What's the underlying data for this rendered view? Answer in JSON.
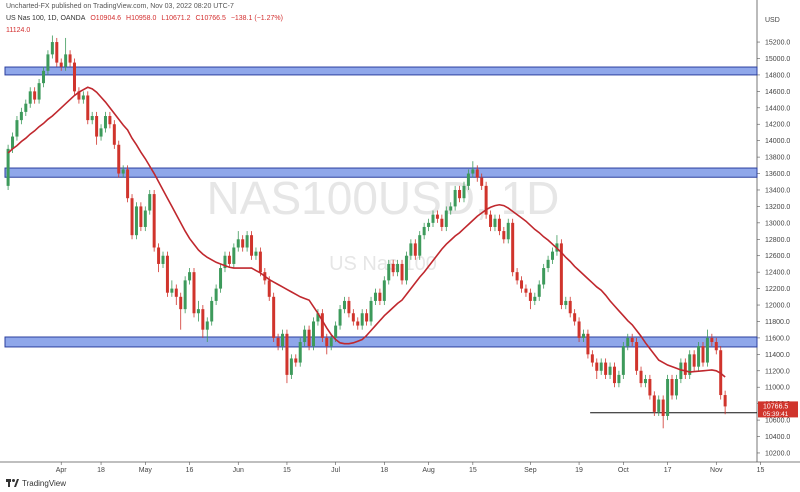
{
  "header": {
    "published": "Uncharted-FX published on TradingView.com, Nov 03, 2022 08:20 UTC-7",
    "symbol": "US Nas 100, 1D, OANDA",
    "ohlc": [
      "O10904.6",
      "H10958.0",
      "L10671.2",
      "C10766.5"
    ],
    "change": "−138.1 (−1.27%)"
  },
  "footer": {
    "brand": "TradingView"
  },
  "chart_data": {
    "type": "candlestick",
    "watermark": {
      "symbol": "NAS100USD, 1D",
      "name": "US Nas 100"
    },
    "currency": "USD",
    "up_color": "#3d9a5b",
    "down_color": "#d0342c",
    "open": [
      13450,
      13900,
      14050,
      14250,
      14350,
      14450,
      14600,
      14500,
      14700,
      14850,
      15050,
      15200,
      14950,
      14900,
      15050,
      14950,
      14600,
      14500,
      14550,
      14250,
      14300,
      14050,
      14150,
      14300,
      14200,
      13950,
      13600,
      13650,
      13300,
      12850,
      13200,
      12950,
      13150,
      13350,
      12700,
      12500,
      12600,
      12150,
      12200,
      12100,
      11950,
      12300,
      12400,
      11900,
      11950,
      11700,
      11800,
      12050,
      12200,
      12450,
      12600,
      12500,
      12700,
      12800,
      12700,
      12850,
      12600,
      12650,
      12400,
      12300,
      12100,
      11600,
      11500,
      11650,
      11150,
      11350,
      11300,
      11550,
      11700,
      11500,
      11800,
      11900,
      11600,
      11500,
      11600,
      11750,
      11950,
      12050,
      11900,
      11800,
      11750,
      11900,
      11800,
      12050,
      12150,
      12050,
      12300,
      12500,
      12400,
      12500,
      12300,
      12600,
      12750,
      12600,
      12850,
      12950,
      13000,
      13100,
      13050,
      12950,
      13150,
      13200,
      13400,
      13300,
      13450,
      13600,
      13650,
      13550,
      13450,
      13100,
      12950,
      13050,
      12900,
      12800,
      13000,
      12400,
      12300,
      12200,
      12150,
      12050,
      12100,
      12250,
      12450,
      12550,
      12650,
      12750,
      12000,
      12050,
      11900,
      11800,
      11600,
      11650,
      11400,
      11300,
      11200,
      11300,
      11150,
      11250,
      11050,
      11150,
      11500,
      11600,
      11550,
      11200,
      11050,
      11100,
      10900,
      10700,
      10850,
      10650,
      11100,
      10900,
      11100,
      11300,
      11150,
      11400,
      11250,
      11500,
      11300,
      11600,
      11550,
      11450,
      10904.6
    ],
    "high": [
      13950,
      14100,
      14300,
      14400,
      14500,
      14650,
      14650,
      14750,
      14900,
      15100,
      15280,
      15250,
      15000,
      15250,
      15100,
      15000,
      14650,
      14600,
      14600,
      14350,
      14350,
      14200,
      14350,
      14350,
      14250,
      14000,
      13700,
      13700,
      13350,
      13250,
      13250,
      13200,
      13400,
      13400,
      12750,
      12650,
      12650,
      12300,
      12250,
      12150,
      12350,
      12450,
      12450,
      12050,
      12000,
      11850,
      12100,
      12250,
      12500,
      12650,
      12650,
      12750,
      12900,
      12850,
      12900,
      12900,
      12700,
      12700,
      12450,
      12350,
      12150,
      11650,
      11700,
      11700,
      11400,
      11400,
      11600,
      11750,
      11750,
      11850,
      11950,
      11950,
      11650,
      11650,
      11800,
      12000,
      12100,
      12100,
      11950,
      11850,
      11950,
      11950,
      12100,
      12200,
      12200,
      12350,
      12550,
      12550,
      12550,
      12550,
      12650,
      12800,
      12800,
      12900,
      13000,
      13050,
      13150,
      13150,
      13100,
      13200,
      13250,
      13450,
      13450,
      13500,
      13650,
      13750,
      13700,
      13600,
      13500,
      13150,
      13100,
      13100,
      12950,
      13050,
      13050,
      12450,
      12350,
      12250,
      12200,
      12150,
      12300,
      12500,
      12600,
      12700,
      12850,
      12800,
      12100,
      12100,
      11950,
      11850,
      11700,
      11700,
      11450,
      11350,
      11350,
      11350,
      11300,
      11300,
      11200,
      11550,
      11650,
      11650,
      11600,
      11250,
      11150,
      11150,
      10950,
      10900,
      10900,
      11150,
      11150,
      11150,
      11350,
      11350,
      11450,
      11450,
      11550,
      11550,
      11700,
      11650,
      11600,
      11500,
      10958
    ],
    "low": [
      13400,
      13850,
      14000,
      14200,
      14300,
      14400,
      14450,
      14450,
      14650,
      14800,
      15000,
      14900,
      14850,
      14850,
      14900,
      14550,
      14450,
      14450,
      14200,
      14200,
      13950,
      14000,
      14100,
      14150,
      13900,
      13550,
      13550,
      13250,
      12800,
      12800,
      12900,
      12900,
      13100,
      12650,
      12400,
      12450,
      12100,
      12100,
      12000,
      11700,
      11900,
      12250,
      11850,
      11800,
      11600,
      11550,
      11750,
      12000,
      12150,
      12400,
      12450,
      12450,
      12650,
      12650,
      12650,
      12550,
      12550,
      12350,
      12250,
      12050,
      11550,
      11450,
      11450,
      11050,
      11100,
      11250,
      11250,
      11500,
      11450,
      11450,
      11750,
      11550,
      11400,
      11450,
      11550,
      11700,
      11900,
      11850,
      11750,
      11700,
      11700,
      11750,
      11750,
      12000,
      12000,
      12000,
      12250,
      12350,
      12350,
      12250,
      12250,
      12550,
      12550,
      12550,
      12800,
      12900,
      12950,
      13000,
      12900,
      12900,
      13100,
      13150,
      13250,
      13250,
      13400,
      13550,
      13500,
      13400,
      13050,
      12900,
      12900,
      12850,
      12750,
      12750,
      12350,
      12250,
      12150,
      12100,
      11950,
      12000,
      12050,
      12200,
      12400,
      12500,
      12600,
      11950,
      11950,
      11850,
      11750,
      11550,
      11550,
      11350,
      11250,
      11100,
      11150,
      11100,
      11100,
      11000,
      11000,
      11100,
      11450,
      11500,
      11150,
      11000,
      11000,
      10850,
      10650,
      10650,
      10500,
      10600,
      10850,
      10850,
      11050,
      11100,
      11100,
      11200,
      11200,
      11250,
      11250,
      11500,
      11400,
      10850,
      10671.2
    ],
    "close": [
      13900,
      14050,
      14250,
      14350,
      14450,
      14600,
      14500,
      14700,
      14850,
      15050,
      15200,
      14950,
      14900,
      15050,
      14950,
      14600,
      14500,
      14550,
      14250,
      14300,
      14050,
      14150,
      14300,
      14200,
      13950,
      13600,
      13650,
      13300,
      12850,
      13200,
      12950,
      13150,
      13350,
      12700,
      12500,
      12600,
      12150,
      12200,
      12100,
      11950,
      12300,
      12400,
      11900,
      11950,
      11700,
      11800,
      12050,
      12200,
      12450,
      12600,
      12500,
      12700,
      12800,
      12700,
      12850,
      12600,
      12650,
      12400,
      12300,
      12100,
      11600,
      11500,
      11650,
      11150,
      11350,
      11300,
      11550,
      11700,
      11500,
      11800,
      11900,
      11600,
      11500,
      11600,
      11750,
      11950,
      12050,
      11900,
      11800,
      11750,
      11900,
      11800,
      12050,
      12150,
      12050,
      12300,
      12500,
      12400,
      12500,
      12300,
      12600,
      12750,
      12600,
      12850,
      12950,
      13000,
      13100,
      13050,
      12950,
      13150,
      13200,
      13400,
      13300,
      13450,
      13600,
      13650,
      13550,
      13450,
      13100,
      12950,
      13050,
      12900,
      12800,
      13000,
      12400,
      12300,
      12200,
      12150,
      12050,
      12100,
      12250,
      12450,
      12550,
      12650,
      12750,
      12000,
      12050,
      11900,
      11800,
      11600,
      11650,
      11400,
      11300,
      11200,
      11300,
      11150,
      11250,
      11050,
      11150,
      11500,
      11600,
      11550,
      11200,
      11050,
      11100,
      10900,
      10700,
      10850,
      10650,
      11100,
      10900,
      11100,
      11300,
      11150,
      11400,
      11250,
      11500,
      11300,
      11600,
      11550,
      11450,
      10904.6,
      10766.5
    ],
    "last_price_label": "10766.5",
    "countdown": "05:39:41",
    "ma": {
      "color": "#c0282e",
      "label": "11124.0",
      "values": [
        13850,
        13900,
        13940,
        13990,
        14030,
        14080,
        14120,
        14170,
        14210,
        14260,
        14300,
        14350,
        14400,
        14450,
        14500,
        14550,
        14590,
        14620,
        14650,
        14630,
        14590,
        14530,
        14470,
        14400,
        14330,
        14260,
        14190,
        14130,
        14030,
        13950,
        13860,
        13780,
        13690,
        13600,
        13500,
        13400,
        13300,
        13200,
        13100,
        13000,
        12900,
        12810,
        12740,
        12670,
        12620,
        12580,
        12550,
        12520,
        12500,
        12480,
        12460,
        12450,
        12450,
        12450,
        12450,
        12450,
        12420,
        12390,
        12350,
        12310,
        12280,
        12250,
        12220,
        12190,
        12160,
        12130,
        12100,
        12080,
        12060,
        11980,
        11900,
        11810,
        11720,
        11640,
        11580,
        11540,
        11530,
        11530,
        11540,
        11560,
        11580,
        11630,
        11690,
        11750,
        11810,
        11870,
        11920,
        11970,
        12020,
        12060,
        12130,
        12200,
        12270,
        12340,
        12400,
        12470,
        12540,
        12610,
        12680,
        12740,
        12790,
        12840,
        12880,
        12930,
        12980,
        13030,
        13080,
        13120,
        13160,
        13190,
        13210,
        13220,
        13210,
        13180,
        13140,
        13100,
        13060,
        13020,
        12970,
        12920,
        12880,
        12830,
        12790,
        12740,
        12690,
        12640,
        12580,
        12530,
        12470,
        12420,
        12370,
        12320,
        12270,
        12220,
        12180,
        12120,
        12050,
        11990,
        11930,
        11870,
        11810,
        11760,
        11690,
        11620,
        11540,
        11470,
        11400,
        11330,
        11300,
        11270,
        11250,
        11230,
        11210,
        11200,
        11185,
        11190,
        11195,
        11200,
        11205,
        11210,
        11200,
        11170,
        11124
      ]
    },
    "zones": [
      {
        "low": 14800,
        "high": 14896
      },
      {
        "low": 13555,
        "high": 13667
      },
      {
        "low": 11490,
        "high": 11611
      }
    ],
    "zone_color": "#7b98e6",
    "zone_border": "#2b3f9e",
    "support": {
      "value": 10690,
      "from": 131.5
    },
    "xlim": [
      -0.7,
      169.2
    ],
    "xticks": [
      {
        "value": 12,
        "label": "Apr"
      },
      {
        "value": 21,
        "label": "18"
      },
      {
        "value": 31,
        "label": "May"
      },
      {
        "value": 41,
        "label": "16"
      },
      {
        "value": 52,
        "label": "Jun"
      },
      {
        "value": 63,
        "label": "15"
      },
      {
        "value": 74,
        "label": "Jul"
      },
      {
        "value": 85,
        "label": "18"
      },
      {
        "value": 95,
        "label": "Aug"
      },
      {
        "value": 105,
        "label": "15"
      },
      {
        "value": 118,
        "label": "Sep"
      },
      {
        "value": 129,
        "label": "19"
      },
      {
        "value": 139,
        "label": "Oct"
      },
      {
        "value": 149,
        "label": "17"
      },
      {
        "value": 160,
        "label": "Nov"
      },
      {
        "value": 170,
        "label": "15"
      }
    ],
    "ylim": [
      10090,
      15590
    ],
    "yticks": [
      {
        "value": 10200,
        "label": "10200.0"
      },
      {
        "value": 10400,
        "label": "10400.0"
      },
      {
        "value": 10600,
        "label": "10600.0"
      },
      {
        "value": 10800,
        "label": "10800.0"
      },
      {
        "value": 11000,
        "label": "11000.0"
      },
      {
        "value": 11200,
        "label": "11200.0"
      },
      {
        "value": 11400,
        "label": "11400.0"
      },
      {
        "value": 11600,
        "label": "11600.0"
      },
      {
        "value": 11800,
        "label": "11800.0"
      },
      {
        "value": 12000,
        "label": "12000.0"
      },
      {
        "value": 12200,
        "label": "12200.0"
      },
      {
        "value": 12400,
        "label": "12400.0"
      },
      {
        "value": 12600,
        "label": "12600.0"
      },
      {
        "value": 12800,
        "label": "12800.0"
      },
      {
        "value": 13000,
        "label": "13000.0"
      },
      {
        "value": 13200,
        "label": "13200.0"
      },
      {
        "value": 13400,
        "label": "13400.0"
      },
      {
        "value": 13600,
        "label": "13600.0"
      },
      {
        "value": 13800,
        "label": "13800.0"
      },
      {
        "value": 14000,
        "label": "14000.0"
      },
      {
        "value": 14200,
        "label": "14200.0"
      },
      {
        "value": 14400,
        "label": "14400.0"
      },
      {
        "value": 14600,
        "label": "14600.0"
      },
      {
        "value": 14800,
        "label": "14800.0"
      },
      {
        "value": 15000,
        "label": "15000.0"
      },
      {
        "value": 15200,
        "label": "15200.0"
      }
    ],
    "grid": false
  }
}
